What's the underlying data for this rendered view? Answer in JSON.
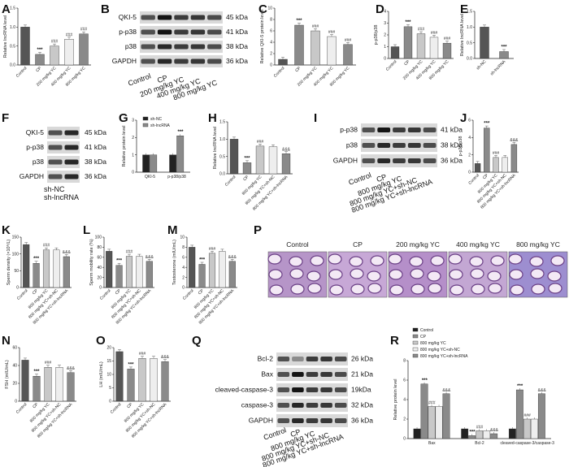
{
  "panels": {
    "A": "A",
    "B": "B",
    "C": "C",
    "D": "D",
    "E": "E",
    "F": "F",
    "G": "G",
    "H": "H",
    "I": "I",
    "J": "J",
    "K": "K",
    "L": "L",
    "M": "M",
    "P": "P",
    "N": "N",
    "O": "O",
    "Q": "Q",
    "R": "R"
  },
  "groups5": [
    "Control",
    "CP",
    "200 mg/kg YC",
    "400 mg/kg YC",
    "800 mg/kg YC"
  ],
  "groups_sh": [
    "Control",
    "CP",
    "800 mg/kg YC",
    "800 mg/kg YC+sh-NC",
    "800 mg/kg YC+sh-lncRNA"
  ],
  "colors": {
    "bar_dark": "#555555",
    "bar_mid": "#8a8a8a",
    "bar_light": "#c8c8c8",
    "bar_white": "#eeeeee",
    "bar_black": "#222222"
  },
  "western": {
    "B": {
      "bands": [
        "QKI-5",
        "p-p38",
        "p38",
        "GAPDH"
      ],
      "kda": [
        "45 kDa",
        "41 kDa",
        "38 kDa",
        "36 kDa"
      ],
      "lanes": [
        "Control",
        "CP",
        "200 mg/kg YC",
        "400 mg/kg YC",
        "800 mg/kg YC"
      ]
    },
    "F": {
      "bands": [
        "QKI-5",
        "p-p38",
        "p38",
        "GAPDH"
      ],
      "kda": [
        "45 kDa",
        "41 kDa",
        "38 kDa",
        "36 kDa"
      ],
      "lanes": [
        "sh-NC",
        "sh-lncRNA"
      ]
    },
    "I": {
      "bands": [
        "p-p38",
        "p38",
        "GAPDH"
      ],
      "kda": [
        "41 kDa",
        "38 kDa",
        "36 kDa"
      ],
      "lanes": [
        "Control",
        "CP",
        "800 mg/kg YC",
        "800 mg/kg YC+sh-NC",
        "800 mg/kg YC+sh-lncRNA"
      ]
    },
    "Q": {
      "bands": [
        "Bcl-2",
        "Bax",
        "cleaved-caspase-3",
        "caspase-3",
        "GAPDH"
      ],
      "kda": [
        "26 kDa",
        "21 kDa",
        "19kDa",
        "32 kDa",
        "36 kDa"
      ],
      "lanes": [
        "Control",
        "CP",
        "800 mg/kg YC",
        "800 mg/kg YC+sh-NC",
        "800 mg/kg YC+sh-lncRNA"
      ]
    }
  },
  "histology": {
    "labels": [
      "Control",
      "CP",
      "200 mg/kg YC",
      "400 mg/kg YC",
      "800 mg/kg YC"
    ]
  },
  "chart_data": [
    {
      "id": "A",
      "type": "bar",
      "ylabel": "Relative lncRNA level",
      "ylim": [
        0,
        1.5
      ],
      "yticks": [
        "0.0",
        "0.5",
        "1.0",
        "1.5"
      ],
      "categories": [
        "Control",
        "CP",
        "200 mg/kg YC",
        "400 mg/kg YC",
        "800 mg/kg YC"
      ],
      "values": [
        1.0,
        0.28,
        0.5,
        0.68,
        0.82
      ],
      "sig": [
        "",
        "***",
        "###",
        "###",
        "###"
      ]
    },
    {
      "id": "C",
      "type": "bar",
      "ylabel": "Relative QKI-5 protein level",
      "ylim": [
        0,
        10
      ],
      "yticks": [
        "0",
        "2",
        "4",
        "6",
        "8",
        "10"
      ],
      "categories": [
        "Control",
        "CP",
        "200 mg/kg YC",
        "400 mg/kg YC",
        "800 mg/kg YC"
      ],
      "values": [
        1.0,
        7.0,
        6.0,
        5.0,
        3.6
      ],
      "sig": [
        "",
        "***",
        "###",
        "###",
        "###"
      ]
    },
    {
      "id": "D",
      "type": "bar",
      "ylabel": "p-p38/p38",
      "ylim": [
        0,
        4
      ],
      "yticks": [
        "0",
        "1",
        "2",
        "3",
        "4"
      ],
      "categories": [
        "Control",
        "CP",
        "200 mg/kg YC",
        "400 mg/kg YC",
        "800 mg/kg YC"
      ],
      "values": [
        1.0,
        2.7,
        2.1,
        1.8,
        1.3
      ],
      "sig": [
        "",
        "***",
        "###",
        "###",
        "###"
      ]
    },
    {
      "id": "E",
      "type": "bar",
      "ylabel": "Relative lncRNA level",
      "ylim": [
        0,
        1.5
      ],
      "yticks": [
        "0.0",
        "0.5",
        "1.0",
        "1.5"
      ],
      "categories": [
        "sh-NC",
        "sh-lncRNA"
      ],
      "values": [
        1.0,
        0.22
      ],
      "sig": [
        "",
        "***"
      ]
    },
    {
      "id": "G",
      "type": "bar",
      "ylabel": "Relative protein level",
      "ylim": [
        0,
        3
      ],
      "yticks": [
        "0",
        "1",
        "2",
        "3"
      ],
      "categories": [
        "QKI-5",
        "p-p38/p38"
      ],
      "series": [
        {
          "name": "sh-NC",
          "values": [
            1.0,
            1.0
          ]
        },
        {
          "name": "sh-lncRNA",
          "values": [
            1.0,
            2.1
          ]
        }
      ],
      "sig": [
        "",
        "***"
      ]
    },
    {
      "id": "H",
      "type": "bar",
      "ylabel": "Relative lncRNA level",
      "ylim": [
        0,
        1.5
      ],
      "yticks": [
        "0.0",
        "0.5",
        "1.0",
        "1.5"
      ],
      "categories": [
        "Control",
        "CP",
        "800 mg/kg YC",
        "800 mg/kg YC+sh-NC",
        "800 mg/kg YC+sh-lncRNA"
      ],
      "values": [
        1.0,
        0.32,
        0.8,
        0.78,
        0.58
      ],
      "sig": [
        "",
        "***",
        "###",
        "",
        "&&&"
      ]
    },
    {
      "id": "J",
      "type": "bar",
      "ylabel": "p-p38/p38",
      "ylim": [
        0,
        6
      ],
      "yticks": [
        "0",
        "2",
        "4",
        "6"
      ],
      "categories": [
        "Control",
        "CP",
        "800 mg/kg YC",
        "800 mg/kg YC+sh-NC",
        "800 mg/kg YC+sh-lncRNA"
      ],
      "values": [
        1.0,
        5.1,
        1.7,
        1.7,
        3.2
      ],
      "sig": [
        "",
        "***",
        "###",
        "",
        "&&&"
      ]
    },
    {
      "id": "K",
      "type": "bar",
      "ylabel": "Sperm density (×10⁶/L)",
      "ylim": [
        0,
        150
      ],
      "yticks": [
        "0",
        "50",
        "100",
        "150"
      ],
      "categories": [
        "Control",
        "CP",
        "800 mg/kg YC",
        "800 mg/kg YC+sh-NC",
        "800 mg/kg YC+sh-lncRNA"
      ],
      "values": [
        128,
        72,
        112,
        112,
        92
      ],
      "sig": [
        "",
        "***",
        "###",
        "",
        "&&&"
      ]
    },
    {
      "id": "L",
      "type": "bar",
      "ylabel": "Sperm mobility rate (%)",
      "ylim": [
        0,
        100
      ],
      "yticks": [
        "0",
        "20",
        "40",
        "60",
        "80",
        "100"
      ],
      "categories": [
        "Control",
        "CP",
        "800 mg/kg YC",
        "800 mg/kg YC+sh-NC",
        "800 mg/kg YC+sh-lncRNA"
      ],
      "values": [
        72,
        44,
        62,
        62,
        52
      ],
      "sig": [
        "",
        "***",
        "###",
        "",
        "&&&"
      ]
    },
    {
      "id": "M",
      "type": "bar",
      "ylabel": "Testosterone (mIU/mL)",
      "ylim": [
        0,
        10
      ],
      "yticks": [
        "0",
        "2",
        "4",
        "6",
        "8",
        "10"
      ],
      "categories": [
        "Control",
        "CP",
        "800 mg/kg YC",
        "800 mg/kg YC+sh-NC",
        "800 mg/kg YC+sh-lncRNA"
      ],
      "values": [
        8.0,
        4.6,
        6.8,
        7.2,
        5.2
      ],
      "sig": [
        "",
        "***",
        "###",
        "",
        "&&&"
      ]
    },
    {
      "id": "N",
      "type": "bar",
      "ylabel": "FSH (mIU/mL)",
      "ylim": [
        0,
        60
      ],
      "yticks": [
        "0",
        "20",
        "40",
        "60"
      ],
      "categories": [
        "Control",
        "CP",
        "800 mg/kg YC",
        "800 mg/kg YC+sh-NC",
        "800 mg/kg YC+sh-lncRNA"
      ],
      "values": [
        46,
        28,
        38,
        38,
        32
      ],
      "sig": [
        "",
        "***",
        "###",
        "",
        "&&&"
      ]
    },
    {
      "id": "O",
      "type": "bar",
      "ylabel": "LH (mIU/mL)",
      "ylim": [
        0,
        20
      ],
      "yticks": [
        "0",
        "5",
        "10",
        "15",
        "20"
      ],
      "categories": [
        "Control",
        "CP",
        "800 mg/kg YC",
        "800 mg/kg YC+sh-NC",
        "800 mg/kg YC+sh-lncRNA"
      ],
      "values": [
        18.5,
        12.0,
        16.0,
        16.0,
        14.8
      ],
      "sig": [
        "",
        "***",
        "###",
        "",
        "&&&"
      ]
    },
    {
      "id": "R",
      "type": "bar",
      "ylabel": "Relative protein level",
      "ylim": [
        0,
        8
      ],
      "yticks": [
        "0",
        "2",
        "4",
        "6",
        "8"
      ],
      "categories": [
        "Bax",
        "Bcl-2",
        "cleaved-caspase-3/caspase-3"
      ],
      "series": [
        {
          "name": "Control",
          "values": [
            1.0,
            1.0,
            1.0
          ]
        },
        {
          "name": "CP",
          "values": [
            5.6,
            0.3,
            5.0
          ]
        },
        {
          "name": "800 mg/kg YC",
          "values": [
            3.3,
            0.8,
            2.0
          ]
        },
        {
          "name": "800 mg/kg YC+sh-NC",
          "values": [
            3.3,
            0.8,
            2.0
          ]
        },
        {
          "name": "800 mg/kg YC+sh-lncRNA",
          "values": [
            4.6,
            0.5,
            4.6
          ]
        }
      ],
      "sig": [
        [
          "",
          "***",
          "###",
          "",
          "&&&"
        ],
        [
          "",
          "***",
          "###",
          "",
          "&&&"
        ],
        [
          "",
          "***",
          "###",
          "",
          "&&&"
        ]
      ]
    }
  ]
}
